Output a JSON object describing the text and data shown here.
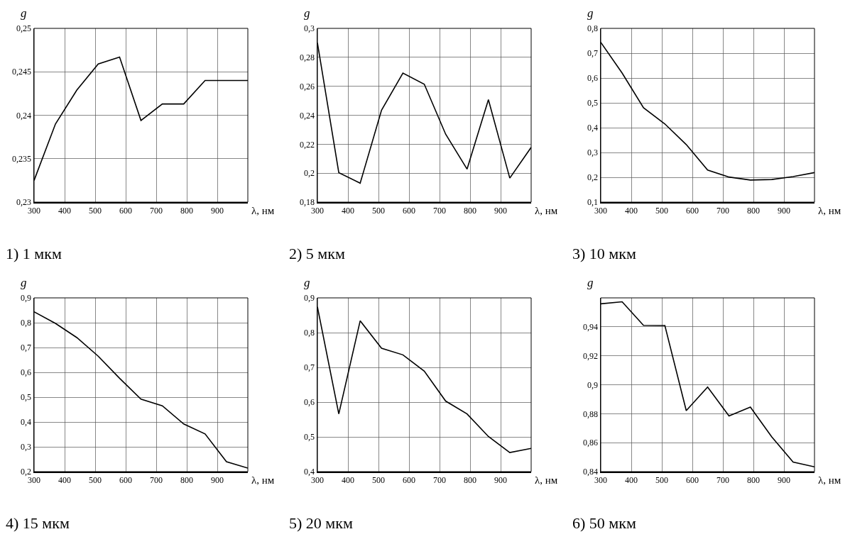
{
  "chart_data": [
    {
      "type": "line",
      "title": "1) 1 мкм",
      "xlabel": "λ, нм",
      "ylabel": "g",
      "grid": true,
      "marker": "none",
      "line_style": "solid",
      "x": [
        300,
        370,
        440,
        510,
        580,
        650,
        720,
        790,
        860,
        930,
        1000
      ],
      "series": [
        {
          "color": "#000000",
          "values": [
            0.2325,
            0.239,
            0.2429,
            0.2459,
            0.2467,
            0.2394,
            0.2413,
            0.2413,
            0.244,
            0.244,
            0.244
          ]
        }
      ],
      "xlim": [
        300,
        1000
      ],
      "xticks": [
        300,
        400,
        500,
        600,
        700,
        800,
        900
      ],
      "ylim": [
        0.23,
        0.25
      ],
      "yticks": [
        {
          "value": 0.23,
          "label": "0,23"
        },
        {
          "value": 0.235,
          "label": "0,235"
        },
        {
          "value": 0.24,
          "label": "0,24"
        },
        {
          "value": 0.245,
          "label": "0,245"
        },
        {
          "value": 0.25,
          "label": "0,25"
        }
      ]
    },
    {
      "type": "line",
      "title": "2) 5 мкм",
      "xlabel": "λ, нм",
      "ylabel": "g",
      "grid": true,
      "marker": "none",
      "line_style": "solid",
      "x": [
        300,
        370,
        440,
        510,
        580,
        650,
        720,
        790,
        860,
        930,
        1000
      ],
      "series": [
        {
          "color": "#000000",
          "values": [
            0.29,
            0.2004,
            0.1931,
            0.2435,
            0.2691,
            0.2614,
            0.2269,
            0.2028,
            0.2508,
            0.1966,
            0.2178
          ]
        }
      ],
      "xlim": [
        300,
        1000
      ],
      "xticks": [
        300,
        400,
        500,
        600,
        700,
        800,
        900
      ],
      "ylim": [
        0.18,
        0.3
      ],
      "yticks": [
        {
          "value": 0.18,
          "label": "0,18"
        },
        {
          "value": 0.2,
          "label": "0,2"
        },
        {
          "value": 0.22,
          "label": "0,22"
        },
        {
          "value": 0.24,
          "label": "0,24"
        },
        {
          "value": 0.26,
          "label": "0,26"
        },
        {
          "value": 0.28,
          "label": "0,28"
        },
        {
          "value": 0.3,
          "label": "0,3"
        }
      ]
    },
    {
      "type": "line",
      "title": "3) 10 мкм",
      "xlabel": "λ, нм",
      "ylabel": "g",
      "grid": true,
      "marker": "none",
      "line_style": "solid",
      "x": [
        300,
        370,
        440,
        510,
        580,
        650,
        720,
        790,
        860,
        930,
        1000
      ],
      "series": [
        {
          "color": "#000000",
          "values": [
            0.744,
            0.62,
            0.48,
            0.415,
            0.332,
            0.229,
            0.201,
            0.189,
            0.191,
            0.203,
            0.219
          ]
        }
      ],
      "xlim": [
        300,
        1000
      ],
      "xticks": [
        300,
        400,
        500,
        600,
        700,
        800,
        900
      ],
      "ylim": [
        0.1,
        0.8
      ],
      "yticks": [
        {
          "value": 0.1,
          "label": "0,1"
        },
        {
          "value": 0.2,
          "label": "0,2"
        },
        {
          "value": 0.3,
          "label": "0,3"
        },
        {
          "value": 0.4,
          "label": "0,4"
        },
        {
          "value": 0.5,
          "label": "0,5"
        },
        {
          "value": 0.6,
          "label": "0,6"
        },
        {
          "value": 0.7,
          "label": "0,7"
        },
        {
          "value": 0.8,
          "label": "0,8"
        }
      ]
    },
    {
      "type": "line",
      "title": "4) 15 мкм",
      "xlabel": "λ, нм",
      "ylabel": "g",
      "grid": true,
      "marker": "none",
      "line_style": "solid",
      "x": [
        300,
        370,
        440,
        510,
        580,
        650,
        720,
        790,
        860,
        930,
        1000
      ],
      "series": [
        {
          "color": "#000000",
          "values": [
            0.844,
            0.797,
            0.74,
            0.665,
            0.576,
            0.492,
            0.465,
            0.392,
            0.352,
            0.24,
            0.214
          ]
        }
      ],
      "xlim": [
        300,
        1000
      ],
      "xticks": [
        300,
        400,
        500,
        600,
        700,
        800,
        900
      ],
      "ylim": [
        0.2,
        0.9
      ],
      "yticks": [
        {
          "value": 0.2,
          "label": "0,2"
        },
        {
          "value": 0.3,
          "label": "0,3"
        },
        {
          "value": 0.4,
          "label": "0,4"
        },
        {
          "value": 0.5,
          "label": "0,5"
        },
        {
          "value": 0.6,
          "label": "0,6"
        },
        {
          "value": 0.7,
          "label": "0,7"
        },
        {
          "value": 0.8,
          "label": "0,8"
        },
        {
          "value": 0.9,
          "label": "0,9"
        }
      ]
    },
    {
      "type": "line",
      "title": "5) 20 мкм",
      "xlabel": "λ, нм",
      "ylabel": "g",
      "grid": true,
      "marker": "none",
      "line_style": "solid",
      "x": [
        300,
        370,
        440,
        510,
        580,
        650,
        720,
        790,
        860,
        930,
        1000
      ],
      "series": [
        {
          "color": "#000000",
          "values": [
            0.874,
            0.566,
            0.834,
            0.755,
            0.736,
            0.689,
            0.603,
            0.566,
            0.501,
            0.455,
            0.467
          ]
        }
      ],
      "xlim": [
        300,
        1000
      ],
      "xticks": [
        300,
        400,
        500,
        600,
        700,
        800,
        900
      ],
      "ylim": [
        0.4,
        0.9
      ],
      "yticks": [
        {
          "value": 0.4,
          "label": "0,4"
        },
        {
          "value": 0.5,
          "label": "0,5"
        },
        {
          "value": 0.6,
          "label": "0,6"
        },
        {
          "value": 0.7,
          "label": "0,7"
        },
        {
          "value": 0.8,
          "label": "0,8"
        },
        {
          "value": 0.9,
          "label": "0,9"
        }
      ]
    },
    {
      "type": "line",
      "title": "6) 50 мкм",
      "xlabel": "λ, нм",
      "ylabel": "g",
      "grid": true,
      "marker": "none",
      "line_style": "solid",
      "x": [
        300,
        370,
        440,
        510,
        580,
        650,
        720,
        790,
        860,
        930,
        1000
      ],
      "series": [
        {
          "color": "#000000",
          "values": [
            0.9559,
            0.9573,
            0.941,
            0.9409,
            0.8821,
            0.8984,
            0.8785,
            0.8846,
            0.864,
            0.8466,
            0.8433
          ]
        }
      ],
      "xlim": [
        300,
        1000
      ],
      "xticks": [
        300,
        400,
        500,
        600,
        700,
        800,
        900
      ],
      "ylim": [
        0.84,
        0.96
      ],
      "yticks": [
        {
          "value": 0.84,
          "label": "0,84"
        },
        {
          "value": 0.86,
          "label": "0,86"
        },
        {
          "value": 0.88,
          "label": "0,88"
        },
        {
          "value": 0.9,
          "label": "0,9"
        },
        {
          "value": 0.92,
          "label": "0,92"
        },
        {
          "value": 0.94,
          "label": "0,94"
        }
      ]
    }
  ]
}
